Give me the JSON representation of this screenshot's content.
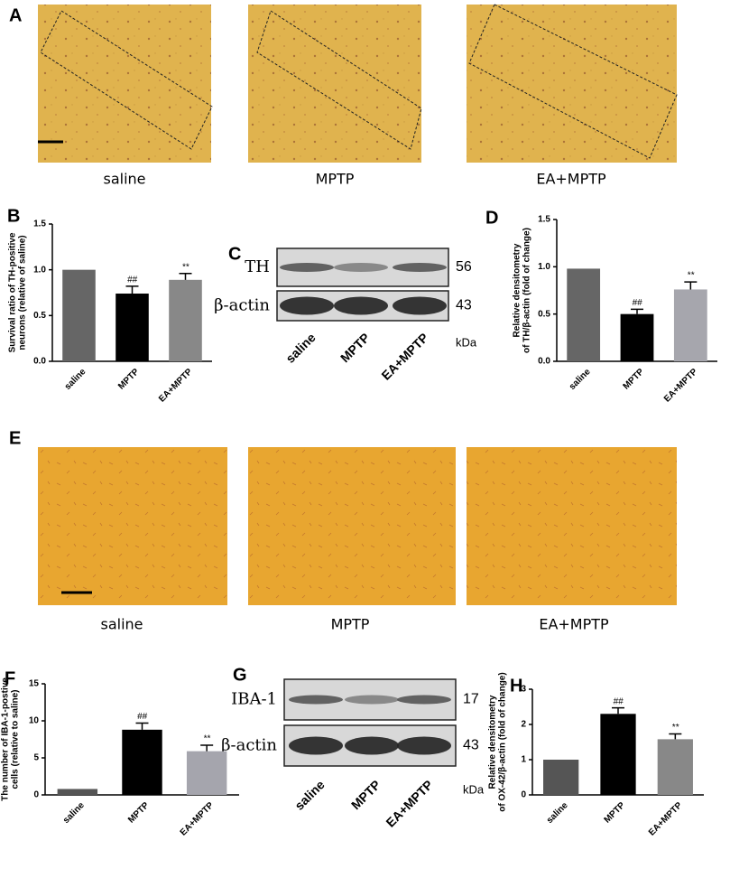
{
  "panel_A": {
    "label": "A",
    "captions": [
      "saline",
      "MPTP",
      "EA+MPTP"
    ]
  },
  "panel_C": {
    "label": "C",
    "rows": [
      {
        "name": "TH",
        "kda": 56
      },
      {
        "name": "β-actin",
        "kda": 43
      }
    ],
    "lanes": [
      "saline",
      "MPTP",
      "EA+MPTP"
    ],
    "unit": "kDa"
  },
  "panel_E": {
    "label": "E",
    "captions": [
      "saline",
      "MPTP",
      "EA+MPTP"
    ]
  },
  "panel_G": {
    "label": "G",
    "rows": [
      {
        "name": "IBA-1",
        "kda": 17
      },
      {
        "name": "β-actin",
        "kda": 43
      }
    ],
    "lanes": [
      "saline",
      "MPTP",
      "EA+MPTP"
    ],
    "unit": "kDa"
  },
  "chart_data": [
    {
      "type": "bar",
      "panel": "B",
      "ylabel": [
        "Survival ratio of TH-positive",
        "neurons (relative of saline)"
      ],
      "categories": [
        "saline",
        "MPTP",
        "EA+MPTP"
      ],
      "values": [
        1.0,
        0.74,
        0.89
      ],
      "errors": [
        0,
        0.08,
        0.07
      ],
      "annotations": [
        null,
        "##",
        "**"
      ],
      "colors": [
        "#666666",
        "#000000",
        "#888888"
      ],
      "ylim": [
        0,
        1.5
      ],
      "yticks": [
        {
          "value": 0,
          "label": "0.0"
        },
        0.5,
        {
          "value": 1,
          "label": "1.0"
        },
        1.5
      ]
    },
    {
      "type": "bar",
      "panel": "D",
      "ylabel": [
        "Relative densitometry",
        "of TH/β-actin (fold of change)"
      ],
      "categories": [
        "saline",
        "MPTP",
        "EA+MPTP"
      ],
      "values": [
        0.98,
        0.5,
        0.76
      ],
      "errors": [
        0,
        0.05,
        0.08
      ],
      "annotations": [
        null,
        "##",
        "**"
      ],
      "colors": [
        "#666666",
        "#000000",
        "#a6a6ad"
      ],
      "ylim": [
        0,
        1.5
      ],
      "yticks": [
        {
          "value": 0,
          "label": "0.0"
        },
        0.5,
        {
          "value": 1,
          "label": "1.0"
        },
        1.5
      ]
    },
    {
      "type": "bar",
      "panel": "F",
      "ylabel": [
        "The number of IBA-1-postive",
        "cells (relative to saline)"
      ],
      "categories": [
        "saline",
        "MPTP",
        "EA+MPTP"
      ],
      "values": [
        0.8,
        8.8,
        5.9
      ],
      "errors": [
        0,
        0.9,
        0.8
      ],
      "annotations": [
        null,
        "##",
        "**"
      ],
      "colors": [
        "#555555",
        "#000000",
        "#a5a5ad"
      ],
      "ylim": [
        0,
        15
      ],
      "yticks": [
        0,
        5,
        10,
        15
      ]
    },
    {
      "type": "bar",
      "panel": "H",
      "ylabel": [
        "Relative densitometry",
        "of OX-42/β-actin (fold of change)"
      ],
      "categories": [
        "saline",
        "MPTP",
        "EA+MPTP"
      ],
      "values": [
        1.0,
        2.3,
        1.58
      ],
      "errors": [
        0,
        0.17,
        0.15
      ],
      "annotations": [
        null,
        "##",
        "**"
      ],
      "colors": [
        "#555555",
        "#000000",
        "#888888"
      ],
      "ylim": [
        0,
        3
      ],
      "yticks": [
        0,
        1,
        2,
        3
      ]
    }
  ]
}
